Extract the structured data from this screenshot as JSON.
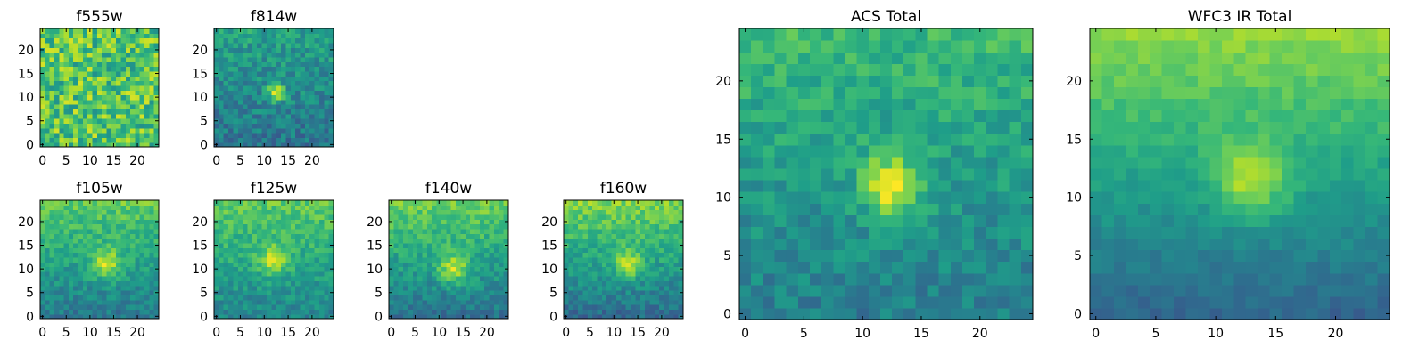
{
  "figure": {
    "colormap": "viridis",
    "interpolation": "nearest"
  },
  "chart_data": [
    {
      "type": "heatmap",
      "title": "f555w",
      "xlim": [
        -0.5,
        24.5
      ],
      "ylim": [
        -0.5,
        24.5
      ],
      "xticks": [
        0,
        5,
        10,
        15,
        20
      ],
      "yticks": [
        0,
        5,
        10,
        15,
        20
      ],
      "grid": false,
      "pattern": {
        "base": 0.72,
        "amp": 0.0,
        "xc": 12,
        "yc": 11,
        "sigma": 2,
        "grad": 0.0,
        "noise": 0.22,
        "seed": 11
      }
    },
    {
      "type": "heatmap",
      "title": "f814w",
      "xlim": [
        -0.5,
        24.5
      ],
      "ylim": [
        -0.5,
        24.5
      ],
      "xticks": [
        0,
        5,
        10,
        15,
        20
      ],
      "yticks": [
        0,
        5,
        10,
        15,
        20
      ],
      "grid": false,
      "pattern": {
        "base": 0.48,
        "amp": 0.5,
        "xc": 12.5,
        "yc": 11,
        "sigma": 1.3,
        "grad": 0.18,
        "noise": 0.13,
        "seed": 23
      }
    },
    {
      "type": "heatmap",
      "title": "f105w",
      "xlim": [
        -0.5,
        24.5
      ],
      "ylim": [
        -0.5,
        24.5
      ],
      "xticks": [
        0,
        5,
        10,
        15,
        20
      ],
      "yticks": [
        0,
        5,
        10,
        15,
        20
      ],
      "grid": false,
      "pattern": {
        "base": 0.58,
        "amp": 0.35,
        "xc": 13.5,
        "yc": 11,
        "sigma": 2.2,
        "grad": 0.35,
        "noise": 0.1,
        "seed": 37
      }
    },
    {
      "type": "heatmap",
      "title": "f125w",
      "xlim": [
        -0.5,
        24.5
      ],
      "ylim": [
        -0.5,
        24.5
      ],
      "xticks": [
        0,
        5,
        10,
        15,
        20
      ],
      "yticks": [
        0,
        5,
        10,
        15,
        20
      ],
      "grid": false,
      "pattern": {
        "base": 0.6,
        "amp": 0.32,
        "xc": 12,
        "yc": 12,
        "sigma": 2.2,
        "grad": 0.3,
        "noise": 0.1,
        "seed": 41
      }
    },
    {
      "type": "heatmap",
      "title": "f140w",
      "xlim": [
        -0.5,
        24.5
      ],
      "ylim": [
        -0.5,
        24.5
      ],
      "xticks": [
        0,
        5,
        10,
        15,
        20
      ],
      "yticks": [
        0,
        5,
        10,
        15,
        20
      ],
      "grid": false,
      "pattern": {
        "base": 0.58,
        "amp": 0.35,
        "xc": 13,
        "yc": 10,
        "sigma": 2.2,
        "grad": 0.4,
        "noise": 0.1,
        "seed": 53
      }
    },
    {
      "type": "heatmap",
      "title": "f160w",
      "xlim": [
        -0.5,
        24.5
      ],
      "ylim": [
        -0.5,
        24.5
      ],
      "xticks": [
        0,
        5,
        10,
        15,
        20
      ],
      "yticks": [
        0,
        5,
        10,
        15,
        20
      ],
      "grid": false,
      "pattern": {
        "base": 0.58,
        "amp": 0.32,
        "xc": 13,
        "yc": 11,
        "sigma": 2.2,
        "grad": 0.45,
        "noise": 0.1,
        "seed": 67
      }
    },
    {
      "type": "heatmap",
      "title": "ACS Total",
      "xlim": [
        -0.5,
        24.5
      ],
      "ylim": [
        -0.5,
        24.5
      ],
      "xticks": [
        0,
        5,
        10,
        15,
        20
      ],
      "yticks": [
        0,
        5,
        10,
        15,
        20
      ],
      "grid": false,
      "pattern": {
        "base": 0.55,
        "amp": 0.45,
        "xc": 12.5,
        "yc": 11,
        "sigma": 1.8,
        "grad": 0.25,
        "noise": 0.1,
        "seed": 71
      }
    },
    {
      "type": "heatmap",
      "title": "WFC3 IR Total",
      "xlim": [
        -0.5,
        24.5
      ],
      "ylim": [
        -0.5,
        24.5
      ],
      "xticks": [
        0,
        5,
        10,
        15,
        20
      ],
      "yticks": [
        0,
        5,
        10,
        15,
        20
      ],
      "grid": false,
      "pattern": {
        "base": 0.58,
        "amp": 0.32,
        "xc": 13,
        "yc": 11.5,
        "sigma": 2.2,
        "grad": 0.5,
        "noise": 0.05,
        "seed": 89
      }
    }
  ]
}
